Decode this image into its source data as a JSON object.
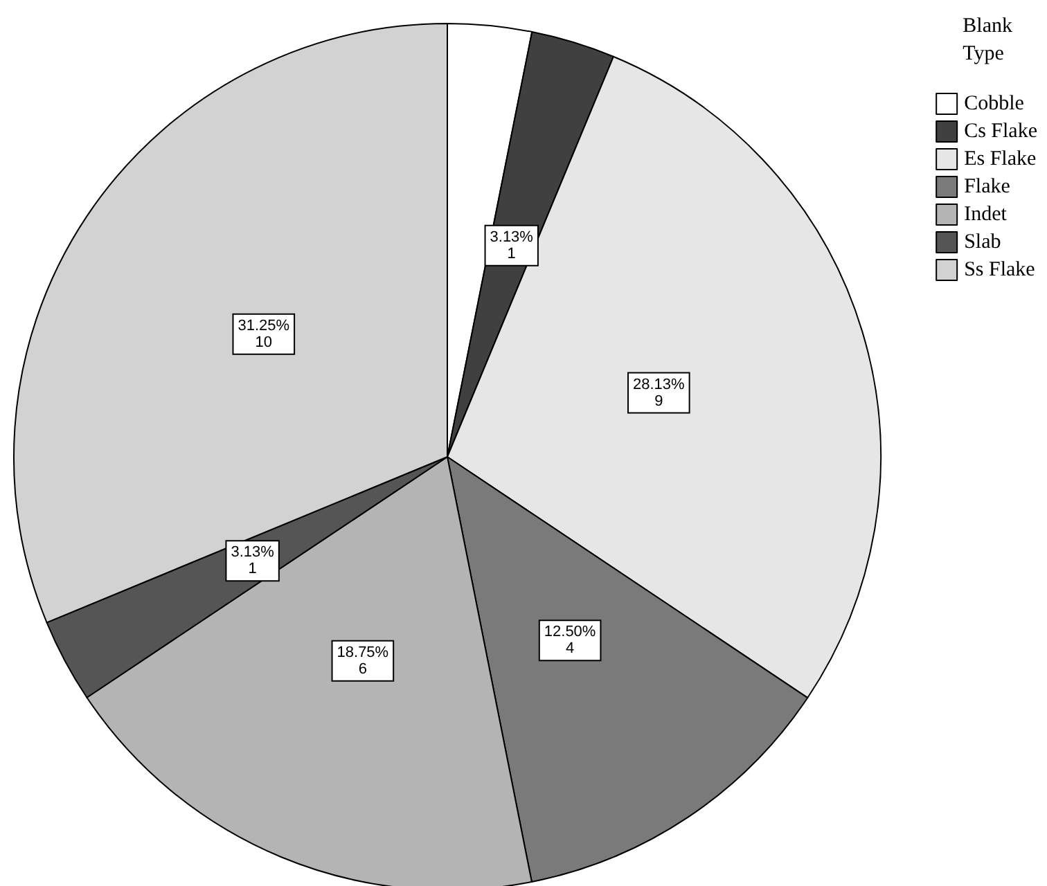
{
  "chart_data": {
    "type": "pie",
    "legend_title": "Blank\nType",
    "legend": "top right",
    "categories": [
      "Cobble",
      "Cs Flake",
      "Es Flake",
      "Flake",
      "Indet",
      "Slab",
      "Ss Flake"
    ],
    "values": [
      3.13,
      3.13,
      28.13,
      12.5,
      18.75,
      3.13,
      31.25
    ],
    "value_labels": [
      null,
      "3.13%\n1",
      "28.13%\n9",
      "12.50%\n4",
      "18.75%\n6",
      "3.13%\n1",
      "31.25%\n10"
    ],
    "colors": [
      "#ffffff",
      "#404040",
      "#e6e6e6",
      "#7a7a7a",
      "#b4b4b4",
      "#555555",
      "#d2d2d2"
    ]
  }
}
